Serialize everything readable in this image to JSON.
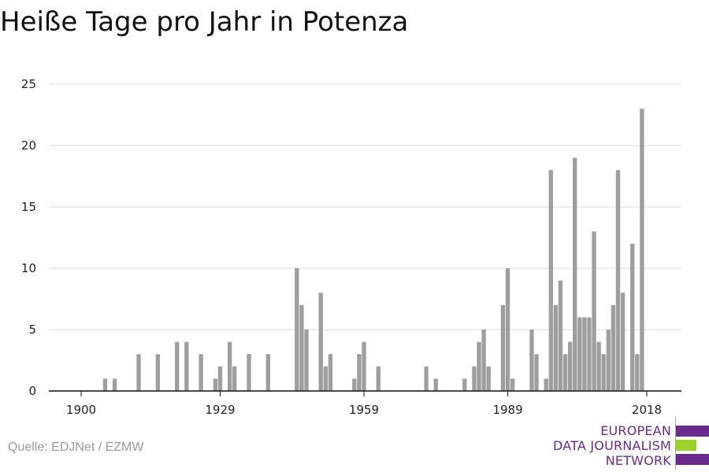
{
  "title": "Heiße Tage pro Jahr in Potenza",
  "source": "Quelle: EDJNet / EZMW",
  "logo": {
    "lines": [
      "EUROPEAN",
      "DATA JOURNALISM",
      "NETWORK"
    ],
    "colors": {
      "purple": "#6b2b8e",
      "green": "#9ad227"
    }
  },
  "colors": {
    "bar": "#9e9e9e",
    "grid": "#dddddd",
    "axis": "#111111",
    "text": "#222222"
  },
  "chart_data": {
    "type": "bar",
    "xlim": [
      1897,
      2024
    ],
    "ylim": [
      0,
      25
    ],
    "yticks": [
      0,
      5,
      10,
      15,
      20,
      25
    ],
    "xticks": [
      1900,
      1929,
      1959,
      1989,
      2018
    ],
    "xlabel": "",
    "ylabel": "",
    "series": [
      {
        "x": [
          1905,
          1907,
          1912,
          1916,
          1920,
          1922,
          1925,
          1928,
          1929,
          1931,
          1932,
          1935,
          1939,
          1945,
          1946,
          1947,
          1950,
          1951,
          1952,
          1957,
          1958,
          1959,
          1962,
          1972,
          1974,
          1980,
          1982,
          1983,
          1984,
          1985,
          1988,
          1989,
          1990,
          1994,
          1995,
          1997,
          1998,
          1999,
          2000,
          2001,
          2002,
          2003,
          2004,
          2005,
          2006,
          2007,
          2008,
          2009,
          2010,
          2011,
          2012,
          2013,
          2014,
          2015,
          2016,
          2017,
          2018
        ],
        "values": [
          1,
          1,
          3,
          3,
          4,
          4,
          3,
          1,
          2,
          4,
          2,
          3,
          3,
          10,
          7,
          5,
          8,
          2,
          3,
          1,
          3,
          4,
          2,
          2,
          1,
          1,
          2,
          4,
          5,
          2,
          7,
          10,
          1,
          5,
          3,
          1,
          18,
          7,
          9,
          3,
          4,
          19,
          6,
          6,
          6,
          13,
          4,
          3,
          5,
          7,
          18,
          8,
          0,
          12,
          3,
          23,
          0
        ]
      }
    ]
  }
}
